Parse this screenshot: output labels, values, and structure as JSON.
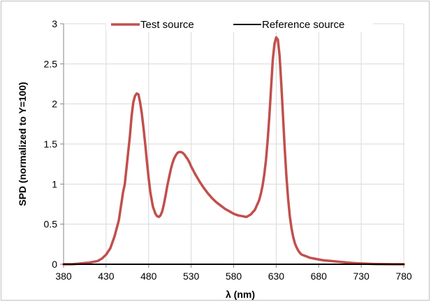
{
  "chart_data": {
    "type": "line",
    "xlabel": "λ (nm)",
    "ylabel": "SPD (normalized to Y=100)",
    "xlim": [
      380,
      780
    ],
    "ylim": [
      0,
      3
    ],
    "xticks": [
      380,
      430,
      480,
      530,
      580,
      630,
      680,
      730,
      780
    ],
    "yticks": [
      0,
      0.5,
      1,
      1.5,
      2,
      2.5,
      3
    ],
    "ytick_labels": [
      "0",
      "0.5",
      "1",
      "1.5",
      "2",
      "2.5",
      "3"
    ],
    "grid": true,
    "legend_position": "top",
    "series": [
      {
        "name": "Test source",
        "color": "#c0504d",
        "x": [
          380,
          390,
          400,
          405,
          410,
          415,
          420,
          425,
          430,
          435,
          440,
          445,
          450,
          452,
          454,
          456,
          458,
          460,
          462,
          464,
          466,
          468,
          470,
          472,
          474,
          476,
          478,
          480,
          482,
          485,
          488,
          490,
          492,
          494,
          496,
          498,
          500,
          502,
          504,
          506,
          508,
          510,
          512,
          514,
          516,
          518,
          520,
          522,
          524,
          526,
          528,
          530,
          535,
          540,
          545,
          550,
          555,
          560,
          565,
          570,
          575,
          580,
          585,
          590,
          595,
          600,
          605,
          610,
          612,
          614,
          616,
          618,
          620,
          622,
          624,
          626,
          628,
          630,
          632,
          634,
          636,
          638,
          640,
          642,
          644,
          646,
          648,
          650,
          652,
          654,
          656,
          658,
          660,
          665,
          670,
          675,
          680,
          685,
          690,
          695,
          700,
          705,
          710,
          715,
          720,
          725,
          730,
          735,
          740,
          745,
          750,
          760,
          770,
          780
        ],
        "values": [
          0,
          0,
          0.01,
          0.015,
          0.02,
          0.03,
          0.04,
          0.07,
          0.12,
          0.2,
          0.35,
          0.55,
          0.9,
          1.0,
          1.2,
          1.4,
          1.6,
          1.85,
          2.02,
          2.1,
          2.13,
          2.12,
          2.02,
          1.88,
          1.7,
          1.5,
          1.28,
          1.08,
          0.9,
          0.72,
          0.63,
          0.6,
          0.59,
          0.61,
          0.66,
          0.75,
          0.86,
          0.98,
          1.08,
          1.18,
          1.26,
          1.32,
          1.36,
          1.39,
          1.4,
          1.4,
          1.39,
          1.37,
          1.34,
          1.31,
          1.27,
          1.22,
          1.12,
          1.03,
          0.95,
          0.88,
          0.82,
          0.77,
          0.73,
          0.69,
          0.66,
          0.63,
          0.61,
          0.6,
          0.59,
          0.62,
          0.68,
          0.8,
          0.88,
          0.98,
          1.12,
          1.3,
          1.55,
          1.85,
          2.2,
          2.55,
          2.75,
          2.83,
          2.8,
          2.6,
          2.25,
          1.85,
          1.45,
          1.1,
          0.82,
          0.6,
          0.45,
          0.34,
          0.26,
          0.21,
          0.17,
          0.14,
          0.12,
          0.1,
          0.08,
          0.07,
          0.06,
          0.05,
          0.045,
          0.04,
          0.035,
          0.03,
          0.025,
          0.02,
          0.015,
          0.012,
          0.01,
          0.008,
          0.005,
          0.003,
          0.002,
          0.001,
          0,
          0
        ]
      },
      {
        "name": "Reference source",
        "color": "#000000",
        "x": [
          380,
          780
        ],
        "values": [
          0,
          0
        ]
      }
    ]
  }
}
